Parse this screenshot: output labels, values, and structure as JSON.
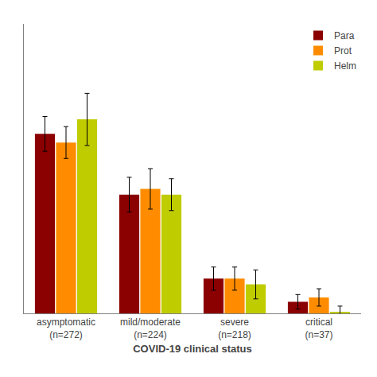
{
  "chart_data": {
    "type": "bar",
    "categories": [
      "asymptomatic\n(n=272)",
      "mild/moderate\n(n=224)",
      "severe\n(n=218)",
      "critical\n(n=37)"
    ],
    "series": [
      {
        "name": "Para",
        "color": "#8B0000",
        "values": [
          0.62,
          0.41,
          0.12,
          0.04
        ],
        "errors": [
          0.06,
          0.06,
          0.04,
          0.025
        ]
      },
      {
        "name": "Prot",
        "color": "#FF8C00",
        "values": [
          0.59,
          0.43,
          0.12,
          0.055
        ],
        "errors": [
          0.055,
          0.07,
          0.04,
          0.03
        ]
      },
      {
        "name": "Helm",
        "color": "#BFCC00",
        "values": [
          0.67,
          0.41,
          0.1,
          0.005
        ],
        "errors": [
          0.09,
          0.055,
          0.05,
          0.02
        ]
      }
    ],
    "xlabel": "COVID-19 clinical status",
    "ylim": [
      0,
      1.0
    ],
    "tick_labels": "x",
    "grid": false,
    "legend": "upper right"
  }
}
